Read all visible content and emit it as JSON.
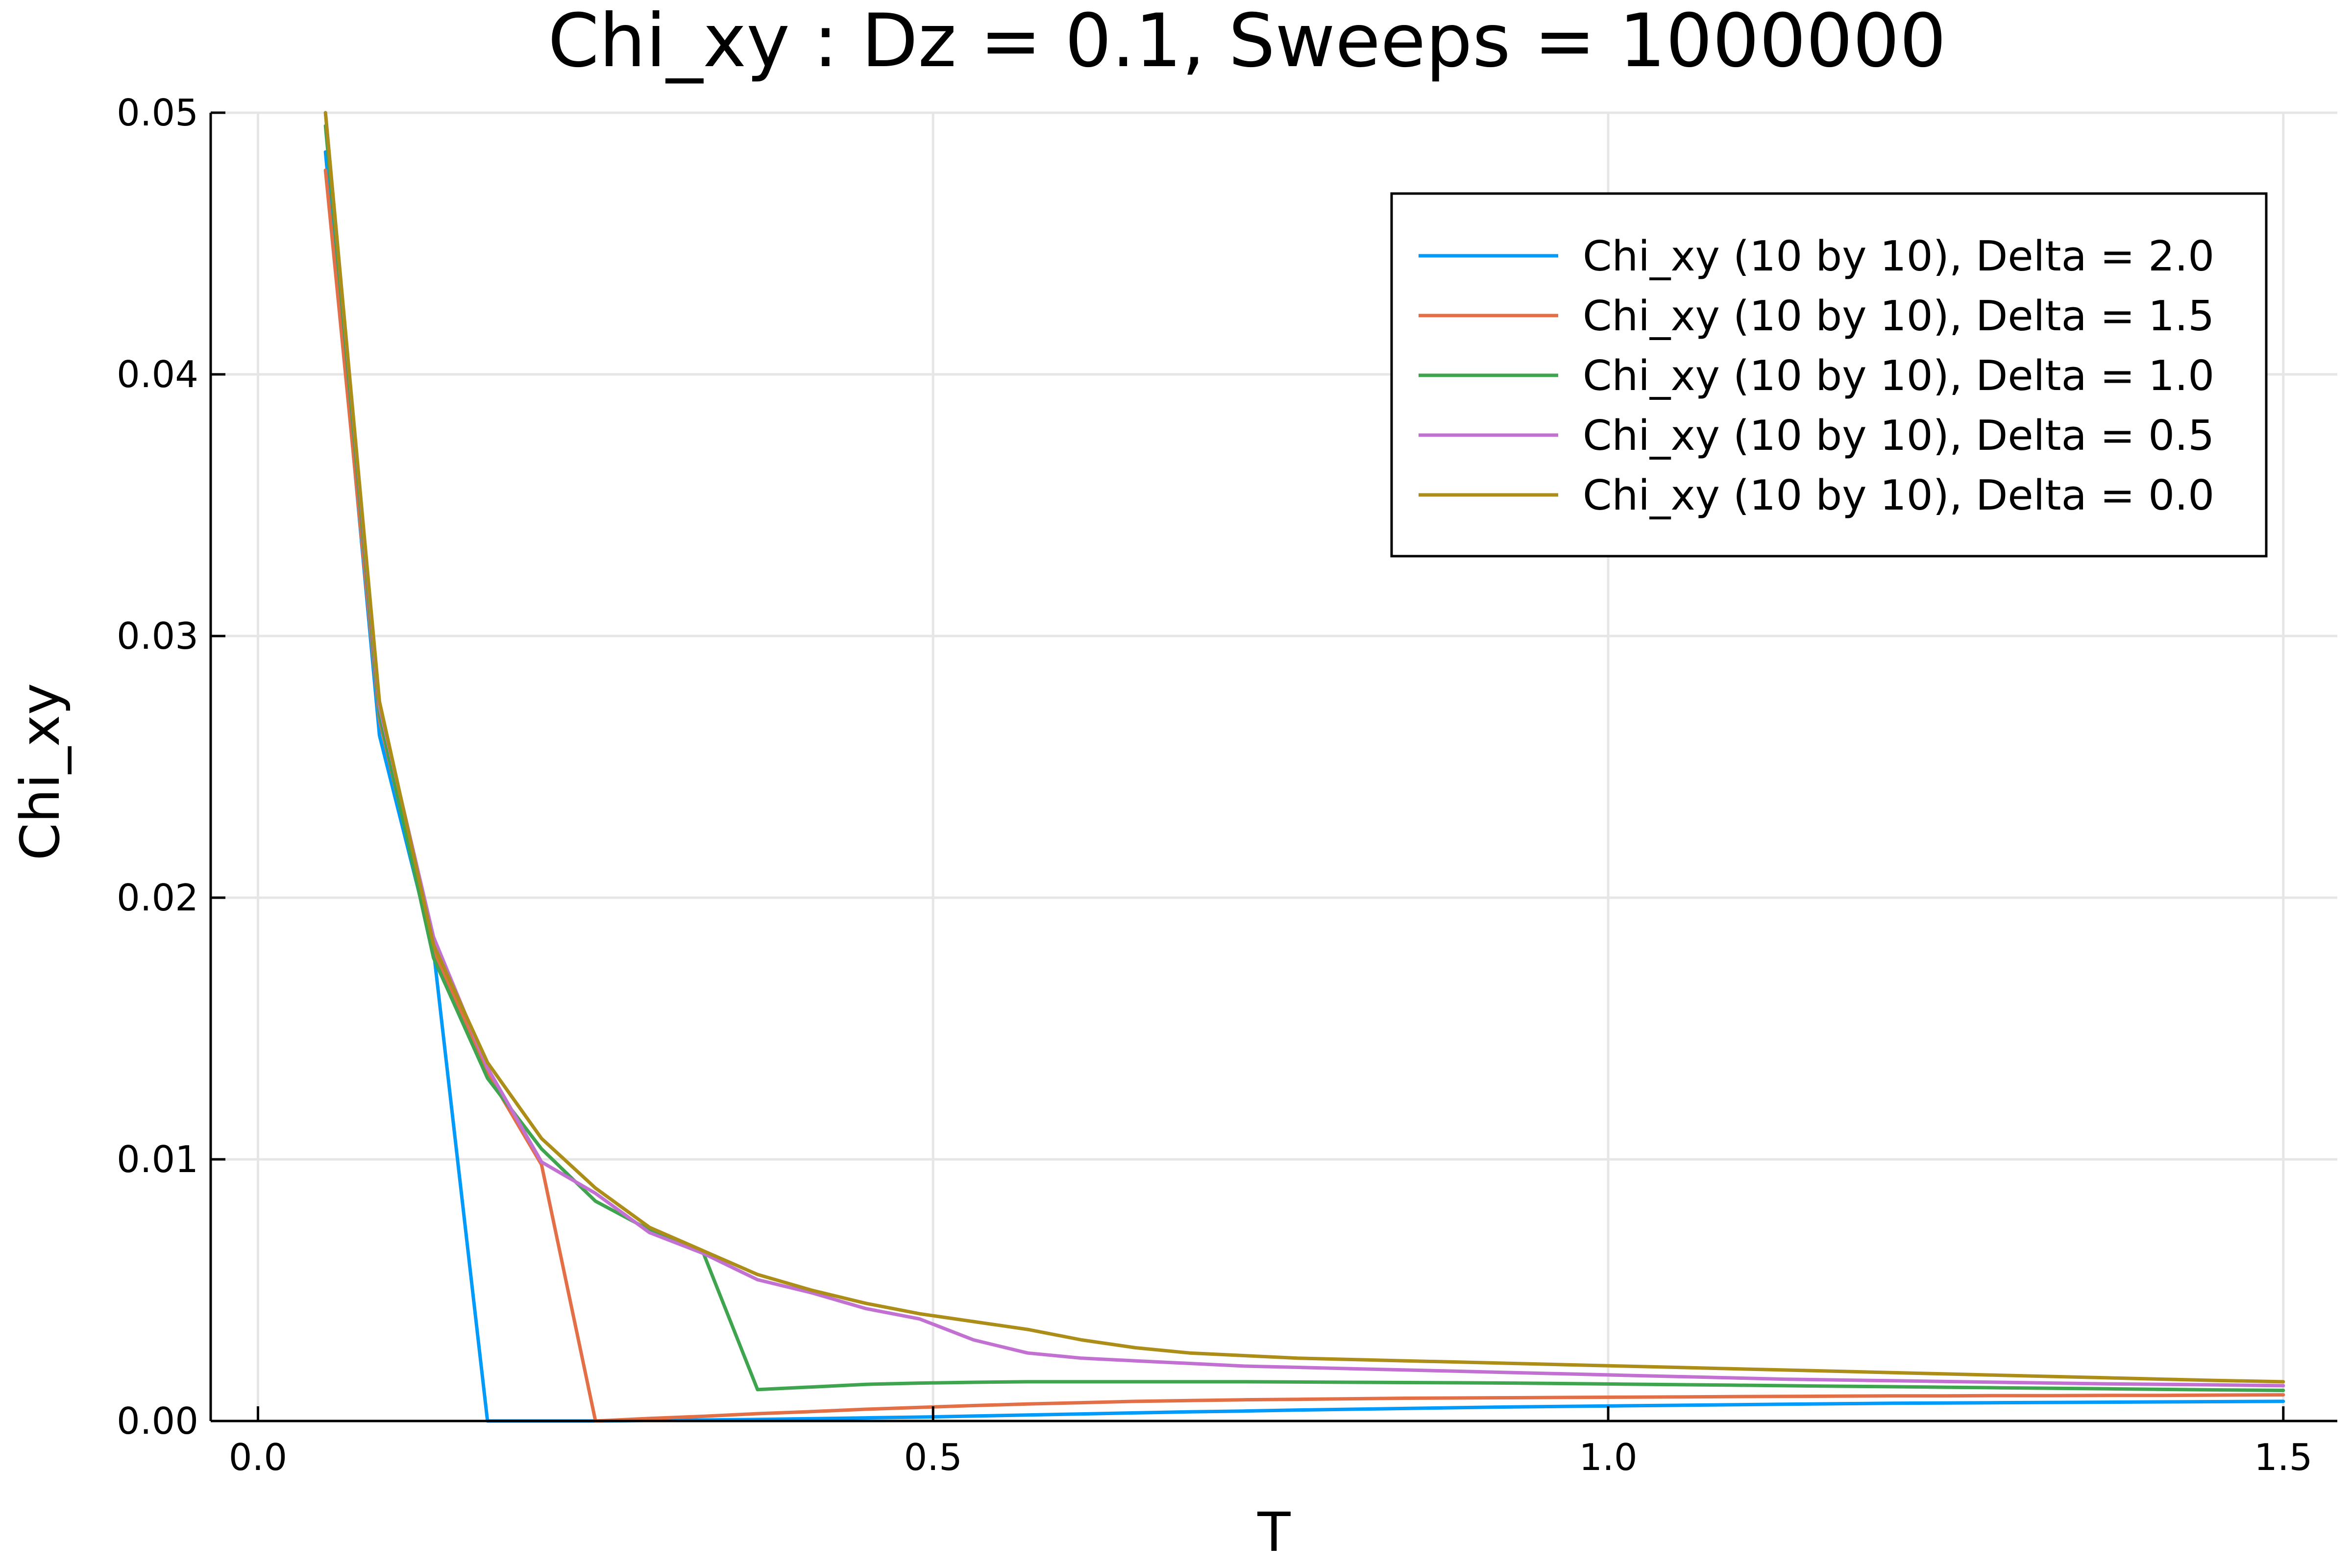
{
  "chart_data": {
    "type": "line",
    "title": "Chi_xy : Dz = 0.1, Sweeps = 1000000",
    "xlabel": "T",
    "ylabel": "Chi_xy",
    "xlim": [
      -0.035,
      1.54
    ],
    "ylim": [
      0,
      0.05
    ],
    "xticks": [
      0.0,
      0.5,
      1.0,
      1.5
    ],
    "xtick_labels": [
      "0.0",
      "0.5",
      "1.0",
      "1.5"
    ],
    "yticks": [
      0.0,
      0.01,
      0.02,
      0.03,
      0.04,
      0.05
    ],
    "ytick_labels": [
      "0.00",
      "0.01",
      "0.02",
      "0.03",
      "0.04",
      "0.05"
    ],
    "grid": true,
    "legend_position": "top-right",
    "x": [
      0.05,
      0.09,
      0.13,
      0.17,
      0.21,
      0.25,
      0.29,
      0.33,
      0.37,
      0.41,
      0.45,
      0.49,
      0.53,
      0.57,
      0.61,
      0.65,
      0.69,
      0.73,
      0.77,
      0.81,
      0.85,
      0.89,
      0.93,
      0.97,
      1.01,
      1.05,
      1.09,
      1.13,
      1.17,
      1.21,
      1.25,
      1.29,
      1.33,
      1.37,
      1.41,
      1.45,
      1.5
    ],
    "series": [
      {
        "name": "Chi_xy (10 by 10), Delta = 2.0",
        "color": "#009AFA",
        "values": [
          0.0485,
          0.0262,
          0.018,
          0.0,
          0.0,
          0.0,
          2e-05,
          4e-05,
          6e-05,
          9e-05,
          0.00012,
          0.00015,
          0.00019,
          0.00023,
          0.00027,
          0.00031,
          0.00035,
          0.00038,
          0.00042,
          0.00045,
          0.00048,
          0.00051,
          0.00054,
          0.00056,
          0.00058,
          0.0006,
          0.00062,
          0.00064,
          0.00066,
          0.00068,
          0.00069,
          0.0007,
          0.00071,
          0.00072,
          0.00073,
          0.00074,
          0.00075
        ]
      },
      {
        "name": "Chi_xy (10 by 10), Delta = 1.5",
        "color": "#E36F47",
        "values": [
          0.0478,
          0.0268,
          0.018,
          0.0133,
          0.0098,
          0.0,
          0.0001,
          0.00018,
          0.00028,
          0.00036,
          0.00045,
          0.00052,
          0.00059,
          0.00065,
          0.0007,
          0.00075,
          0.00078,
          0.00081,
          0.00083,
          0.00085,
          0.00087,
          0.00088,
          0.00089,
          0.0009,
          0.00091,
          0.00092,
          0.00093,
          0.00094,
          0.00095,
          0.00096,
          0.00096,
          0.00097,
          0.00097,
          0.00098,
          0.00098,
          0.00099,
          0.001
        ]
      },
      {
        "name": "Chi_xy (10 by 10), Delta = 1.0",
        "color": "#3EA44E",
        "values": [
          0.0495,
          0.027,
          0.0177,
          0.0131,
          0.0104,
          0.0084,
          0.0073,
          0.0064,
          0.0012,
          0.0013,
          0.0014,
          0.00145,
          0.00148,
          0.0015,
          0.0015,
          0.0015,
          0.0015,
          0.0015,
          0.00149,
          0.00148,
          0.00147,
          0.00146,
          0.00145,
          0.00143,
          0.00141,
          0.00139,
          0.00137,
          0.00135,
          0.00133,
          0.00131,
          0.00129,
          0.00127,
          0.00125,
          0.00123,
          0.00121,
          0.00119,
          0.00117
        ]
      },
      {
        "name": "Chi_xy (10 by 10), Delta = 0.5",
        "color": "#C271D2",
        "values": [
          0.05,
          0.0273,
          0.0185,
          0.0135,
          0.0099,
          0.0087,
          0.0072,
          0.0064,
          0.0054,
          0.0049,
          0.0043,
          0.0039,
          0.0031,
          0.0026,
          0.0024,
          0.0023,
          0.0022,
          0.0021,
          0.00205,
          0.002,
          0.00195,
          0.0019,
          0.00185,
          0.0018,
          0.00175,
          0.0017,
          0.00165,
          0.0016,
          0.00157,
          0.00154,
          0.00151,
          0.00148,
          0.00145,
          0.00142,
          0.0014,
          0.00138,
          0.00135
        ]
      },
      {
        "name": "Chi_xy (10 by 10), Delta = 0.0",
        "color": "#AC8D18",
        "values": [
          0.05,
          0.0275,
          0.0182,
          0.0137,
          0.0108,
          0.0089,
          0.0074,
          0.0065,
          0.0056,
          0.005,
          0.0045,
          0.0041,
          0.0038,
          0.0035,
          0.0031,
          0.0028,
          0.0026,
          0.0025,
          0.0024,
          0.00235,
          0.0023,
          0.00225,
          0.0022,
          0.00215,
          0.0021,
          0.00205,
          0.002,
          0.00195,
          0.0019,
          0.00185,
          0.0018,
          0.00175,
          0.0017,
          0.00165,
          0.0016,
          0.00155,
          0.0015
        ]
      }
    ]
  }
}
